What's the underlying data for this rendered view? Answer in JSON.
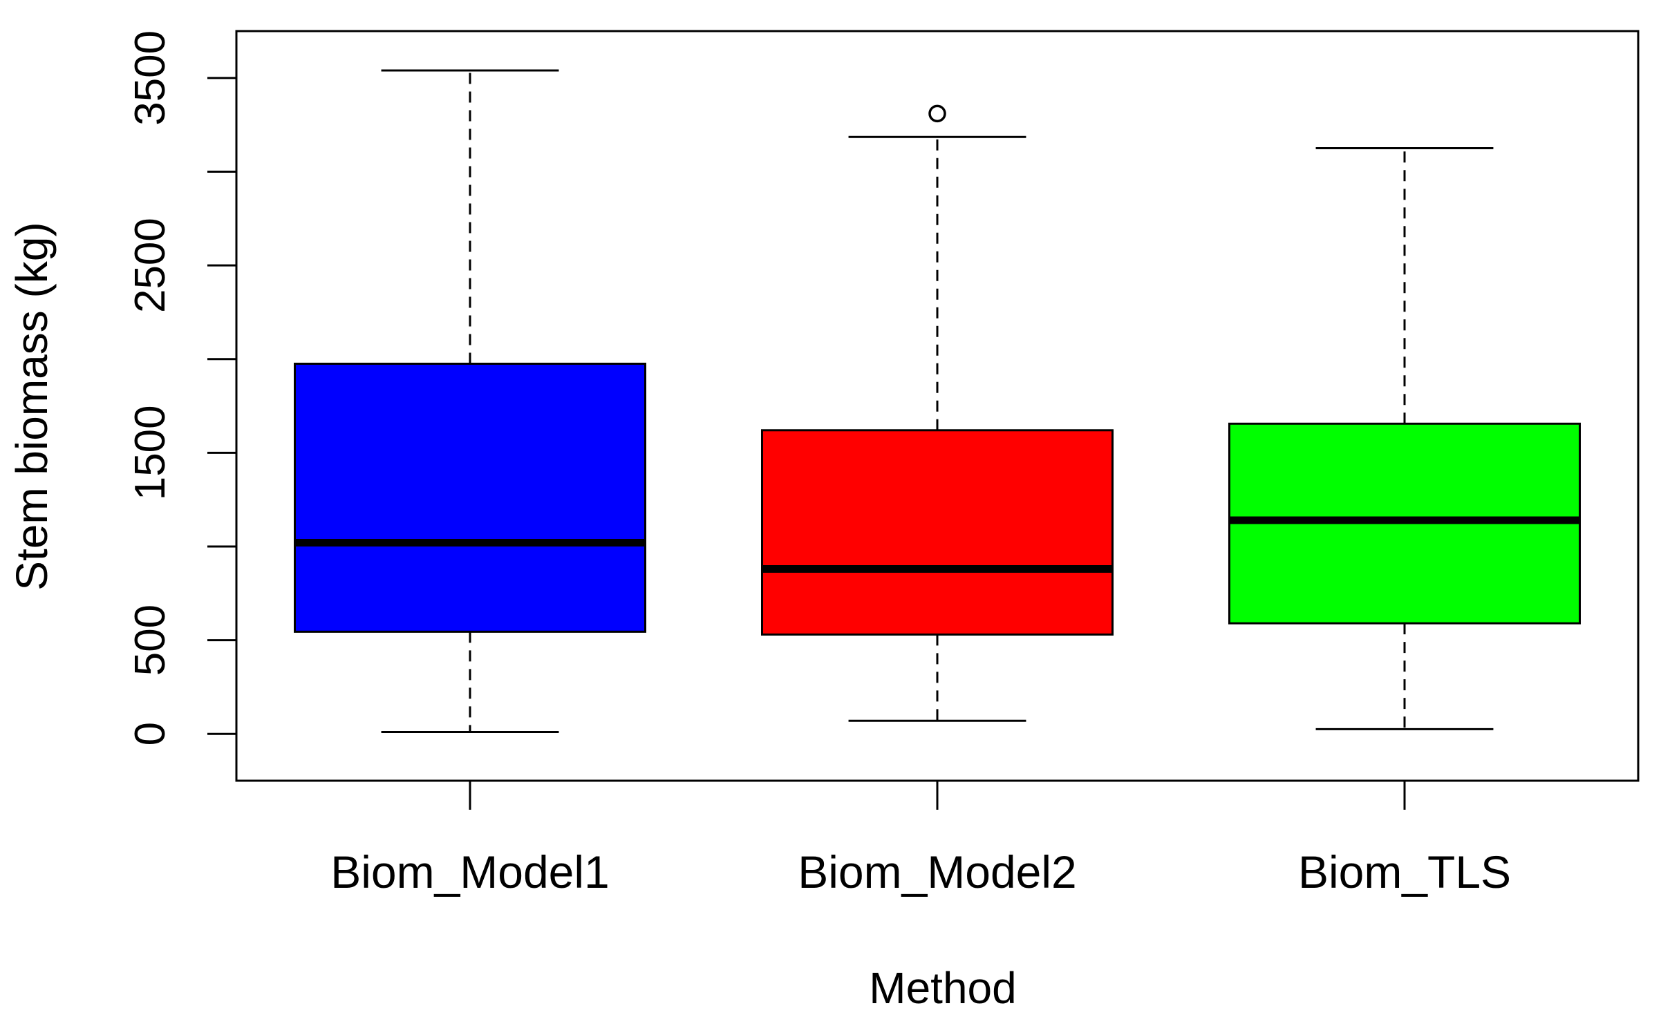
{
  "chart_data": {
    "type": "boxplot",
    "xlabel": "Method",
    "ylabel": "Stem biomass (kg)",
    "ylim": [
      -250,
      3750
    ],
    "y_ticks": [
      0,
      500,
      1500,
      2500,
      3500
    ],
    "y_tick_labels": [
      "0",
      "500",
      "1500",
      "2500",
      "3500"
    ],
    "y_minor_ticks": [
      1000,
      2000,
      3000
    ],
    "categories": [
      "Biom_Model1",
      "Biom_Model2",
      "Biom_TLS"
    ],
    "grid": false,
    "legend": "none",
    "boxes": [
      {
        "label": "Biom_Model1",
        "min": 10,
        "q1": 545,
        "median": 1020,
        "q3": 1975,
        "max": 3540,
        "outliers": [],
        "color": "#0000ff"
      },
      {
        "label": "Biom_Model2",
        "min": 70,
        "q1": 530,
        "median": 880,
        "q3": 1620,
        "max": 3185,
        "outliers": [
          3310
        ],
        "color": "#ff0000"
      },
      {
        "label": "Biom_TLS",
        "min": 25,
        "q1": 590,
        "median": 1140,
        "q3": 1655,
        "max": 3125,
        "outliers": [],
        "color": "#00ff00"
      }
    ]
  }
}
